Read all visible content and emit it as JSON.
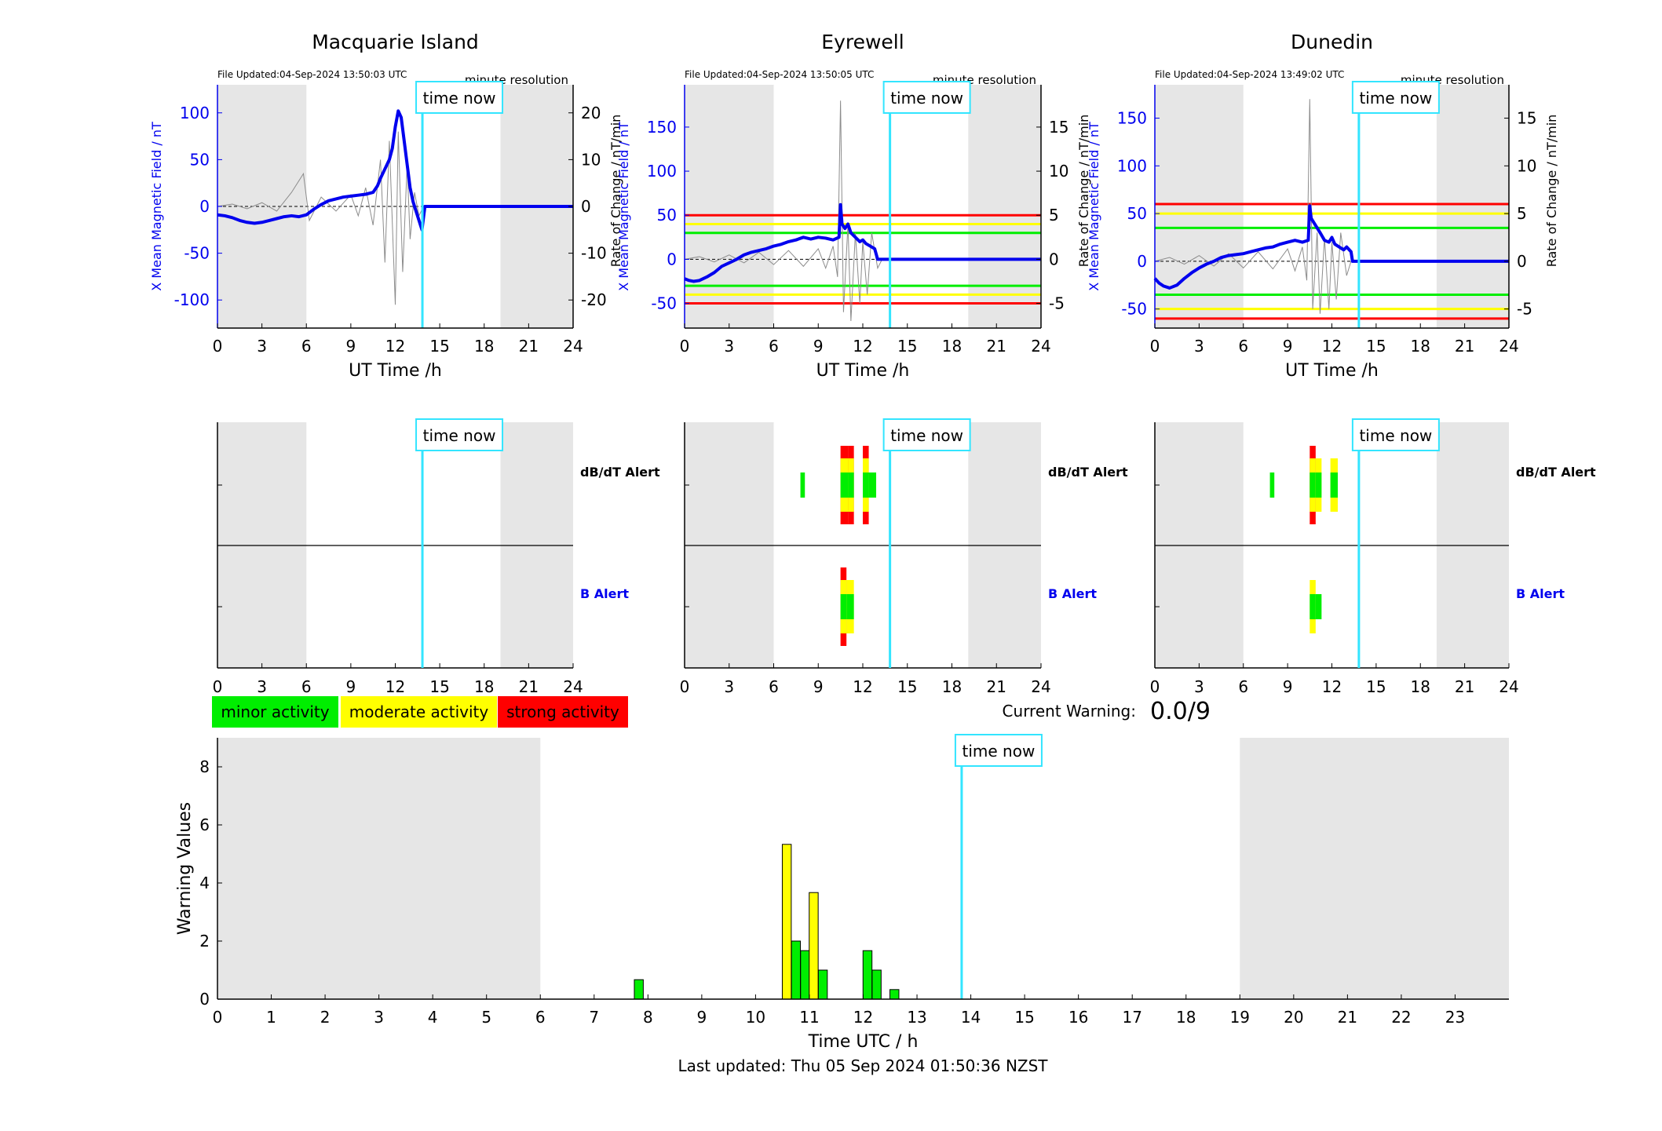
{
  "colors": {
    "shade": "#e6e6e6",
    "now_line": "#33e5ff",
    "mean_line": "#0000ee",
    "rate_line": "#8c8c8c",
    "left_axis": "#0000ee",
    "minor": "#00ee00",
    "moderate": "#ffff00",
    "strong": "#ff0000"
  },
  "common": {
    "time_now_label": "time now",
    "ut_xlabel": "UT Time /h",
    "ylabel_left": "X Mean Magnetic Field / nT",
    "ylabel_right": "Rate of Change / nT/min",
    "resolution": "minute resolution",
    "dbdt_alert_label": "dB/dT Alert",
    "b_alert_label": "B Alert"
  },
  "legend": {
    "minor": "minor activity",
    "moderate": "moderate activity",
    "strong": "strong activity"
  },
  "current_warning": {
    "label": "Current Warning:",
    "value": "0.0/9"
  },
  "footer": {
    "last_updated": "Last updated: Thu 05 Sep 2024 01:50:36 NZST"
  },
  "chart_data": [
    {
      "type": "line",
      "title": "Macquarie Island",
      "file_updated": "File Updated:04-Sep-2024 13:50:03 UTC",
      "xlabel": "UT Time /h",
      "xlim": [
        0,
        24
      ],
      "xticks": [
        "0",
        "3",
        "6",
        "9",
        "12",
        "15",
        "18",
        "21",
        "24"
      ],
      "ylim_left": [
        -130,
        130
      ],
      "yticks_left": [
        "100",
        "50",
        "0",
        "-50",
        "-100"
      ],
      "ylim_right": [
        -26,
        26
      ],
      "yticks_right": [
        "20",
        "10",
        "0",
        "-10",
        "-20"
      ],
      "shaded_intervals": [
        [
          0,
          6
        ],
        [
          19.1,
          24
        ]
      ],
      "time_now": 13.83,
      "thresholds": [],
      "mean_field": {
        "x": [
          0,
          0.5,
          1,
          1.5,
          2,
          2.5,
          3,
          3.5,
          4,
          4.5,
          5,
          5.5,
          6,
          6.5,
          7,
          7.5,
          8,
          8.5,
          9,
          9.5,
          10,
          10.5,
          10.8,
          11,
          11.3,
          11.6,
          11.8,
          12,
          12.2,
          12.4,
          12.6,
          12.8,
          13,
          13.2,
          13.4,
          13.6,
          13.8,
          14,
          24
        ],
        "y": [
          -9,
          -10,
          -12,
          -15,
          -17,
          -18,
          -17,
          -15,
          -13,
          -11,
          -10,
          -11,
          -9,
          -3,
          2,
          6,
          8,
          10,
          11,
          12,
          13,
          15,
          22,
          30,
          40,
          50,
          62,
          85,
          102,
          95,
          70,
          45,
          20,
          5,
          -5,
          -15,
          -25,
          0,
          0
        ]
      },
      "rate_of_change": {
        "x": [
          0,
          1,
          2,
          3,
          4,
          5,
          5.8,
          6.2,
          7,
          8,
          9,
          9.5,
          10,
          10.5,
          11,
          11.3,
          11.6,
          12,
          12.2,
          12.5,
          12.8,
          13,
          13.3,
          13.6,
          13.9
        ],
        "y": [
          0,
          0.5,
          -0.5,
          0.8,
          -1,
          3,
          7,
          -3,
          2,
          -1,
          2.5,
          -2,
          4,
          -4,
          10,
          -12,
          14,
          -21,
          16,
          -14,
          9,
          -7,
          3,
          -2,
          0
        ]
      },
      "dbdt_alert": [],
      "b_alert": []
    },
    {
      "type": "line",
      "title": "Eyrewell",
      "file_updated": "File Updated:04-Sep-2024 13:50:05 UTC",
      "xlabel": "UT Time /h",
      "xlim": [
        0,
        24
      ],
      "xticks": [
        "0",
        "3",
        "6",
        "9",
        "12",
        "15",
        "18",
        "21",
        "24"
      ],
      "ylim_left": [
        -78,
        198
      ],
      "yticks_left": [
        "150",
        "100",
        "50",
        "0",
        "-50"
      ],
      "ylim_right": [
        -7.8,
        19.8
      ],
      "yticks_right": [
        "15",
        "10",
        "5",
        "0",
        "-5"
      ],
      "shaded_intervals": [
        [
          0,
          6
        ],
        [
          19.1,
          24
        ]
      ],
      "time_now": 13.83,
      "thresholds": [
        {
          "level": "strong",
          "values": [
            50,
            -50
          ]
        },
        {
          "level": "moderate",
          "values": [
            40,
            -40
          ]
        },
        {
          "level": "minor",
          "values": [
            30,
            -30
          ]
        }
      ],
      "mean_field": {
        "x": [
          0,
          0.3,
          0.6,
          1,
          1.5,
          2,
          2.5,
          3,
          3.5,
          4,
          4.5,
          5,
          5.5,
          6,
          6.5,
          7,
          7.5,
          8,
          8.5,
          9,
          9.5,
          10,
          10.4,
          10.5,
          10.6,
          10.8,
          11,
          11.2,
          11.5,
          11.8,
          12,
          12.2,
          12.5,
          12.8,
          13,
          24
        ],
        "y": [
          -22,
          -24,
          -25,
          -24,
          -20,
          -15,
          -8,
          -4,
          0,
          5,
          8,
          10,
          12,
          15,
          17,
          20,
          22,
          25,
          23,
          25,
          24,
          22,
          25,
          62,
          40,
          35,
          40,
          30,
          25,
          20,
          22,
          18,
          15,
          12,
          0,
          0
        ]
      },
      "rate_of_change": {
        "x": [
          0,
          1,
          2,
          3,
          4,
          5,
          6,
          7,
          8,
          9,
          9.5,
          10,
          10.3,
          10.5,
          10.7,
          11,
          11.2,
          11.5,
          11.8,
          12,
          12.3,
          12.6,
          13,
          13.3
        ],
        "y": [
          0,
          0.3,
          -0.3,
          0.5,
          -0.4,
          0.8,
          -0.6,
          1,
          -0.8,
          1.2,
          -1,
          1.5,
          -2,
          18,
          -6,
          4,
          -7,
          3,
          -5,
          2,
          -4,
          3,
          -1,
          0
        ]
      },
      "dbdt_alert": [
        {
          "x0": 7.8,
          "x1": 8.1,
          "level": "minor"
        },
        {
          "x0": 10.5,
          "x1": 11.0,
          "level": "strong"
        },
        {
          "x0": 11.0,
          "x1": 11.4,
          "level": "strong"
        },
        {
          "x0": 12.0,
          "x1": 12.4,
          "level": "strong"
        },
        {
          "x0": 12.4,
          "x1": 12.9,
          "level": "minor"
        }
      ],
      "b_alert": [
        {
          "x0": 10.5,
          "x1": 10.9,
          "level": "strong"
        },
        {
          "x0": 10.9,
          "x1": 11.4,
          "level": "moderate"
        }
      ]
    },
    {
      "type": "line",
      "title": "Dunedin",
      "file_updated": "File Updated:04-Sep-2024 13:49:02 UTC",
      "xlabel": "UT Time /h",
      "xlim": [
        0,
        24
      ],
      "xticks": [
        "0",
        "3",
        "6",
        "9",
        "12",
        "15",
        "18",
        "21",
        "24"
      ],
      "ylim_left": [
        -70,
        185
      ],
      "yticks_left": [
        "150",
        "100",
        "50",
        "0",
        "-50"
      ],
      "ylim_right": [
        -7,
        18.5
      ],
      "yticks_right": [
        "15",
        "10",
        "5",
        "0",
        "-5"
      ],
      "shaded_intervals": [
        [
          0,
          6
        ],
        [
          19.1,
          24
        ]
      ],
      "time_now": 13.83,
      "thresholds": [
        {
          "level": "strong",
          "values": [
            60,
            -60
          ]
        },
        {
          "level": "moderate",
          "values": [
            50,
            -50
          ]
        },
        {
          "level": "minor",
          "values": [
            35,
            -35
          ]
        }
      ],
      "mean_field": {
        "x": [
          0,
          0.3,
          0.6,
          1,
          1.5,
          2,
          2.5,
          3,
          3.5,
          4,
          4.5,
          5,
          5.5,
          6,
          6.5,
          7,
          7.5,
          8,
          8.5,
          9,
          9.5,
          10,
          10.4,
          10.5,
          10.6,
          10.8,
          11,
          11.2,
          11.5,
          11.8,
          12,
          12.2,
          12.5,
          12.8,
          13,
          13.3,
          13.4,
          24
        ],
        "y": [
          -18,
          -23,
          -26,
          -28,
          -25,
          -18,
          -12,
          -7,
          -3,
          0,
          4,
          6,
          7,
          8,
          10,
          12,
          14,
          15,
          18,
          20,
          22,
          20,
          22,
          58,
          45,
          40,
          35,
          30,
          22,
          20,
          25,
          18,
          15,
          12,
          15,
          10,
          0,
          0
        ]
      },
      "rate_of_change": {
        "x": [
          0,
          1,
          2,
          3,
          4,
          5,
          6,
          7,
          8,
          9,
          9.5,
          10,
          10.3,
          10.5,
          10.7,
          11,
          11.2,
          11.5,
          11.8,
          12,
          12.3,
          12.6,
          13,
          13.3
        ],
        "y": [
          0,
          0.4,
          -0.3,
          0.6,
          -0.5,
          0.8,
          -0.7,
          1,
          -0.8,
          1.3,
          -1,
          1.5,
          -2,
          17,
          -5,
          3,
          -5.5,
          2.5,
          -5,
          2,
          -4,
          3,
          -1.5,
          0
        ]
      },
      "dbdt_alert": [
        {
          "x0": 7.8,
          "x1": 8.1,
          "level": "minor"
        },
        {
          "x0": 10.5,
          "x1": 10.9,
          "level": "strong"
        },
        {
          "x0": 10.9,
          "x1": 11.3,
          "level": "moderate"
        },
        {
          "x0": 11.9,
          "x1": 12.4,
          "level": "moderate"
        }
      ],
      "b_alert": [
        {
          "x0": 10.5,
          "x1": 10.9,
          "level": "moderate"
        },
        {
          "x0": 10.9,
          "x1": 11.3,
          "level": "minor"
        }
      ]
    },
    {
      "type": "bar",
      "xlabel": "Time UTC / h",
      "ylabel": "Warning Values",
      "xlim": [
        0,
        24
      ],
      "ylim": [
        0,
        9
      ],
      "xticks": [
        "0",
        "1",
        "2",
        "3",
        "4",
        "5",
        "6",
        "7",
        "8",
        "9",
        "10",
        "11",
        "12",
        "13",
        "14",
        "15",
        "16",
        "17",
        "18",
        "19",
        "20",
        "21",
        "22",
        "23"
      ],
      "yticks": [
        "0",
        "2",
        "4",
        "6",
        "8"
      ],
      "shaded_intervals": [
        [
          0,
          6
        ],
        [
          19,
          24
        ]
      ],
      "time_now": 13.83,
      "bars": [
        {
          "x": 7.83,
          "value": 0.67,
          "level": "minor"
        },
        {
          "x": 10.58,
          "value": 5.33,
          "level": "moderate"
        },
        {
          "x": 10.75,
          "value": 2.0,
          "level": "minor"
        },
        {
          "x": 10.92,
          "value": 1.67,
          "level": "minor"
        },
        {
          "x": 11.08,
          "value": 3.67,
          "level": "moderate"
        },
        {
          "x": 11.25,
          "value": 1.0,
          "level": "minor"
        },
        {
          "x": 12.08,
          "value": 1.67,
          "level": "minor"
        },
        {
          "x": 12.25,
          "value": 1.0,
          "level": "minor"
        },
        {
          "x": 12.58,
          "value": 0.33,
          "level": "minor"
        }
      ]
    }
  ]
}
